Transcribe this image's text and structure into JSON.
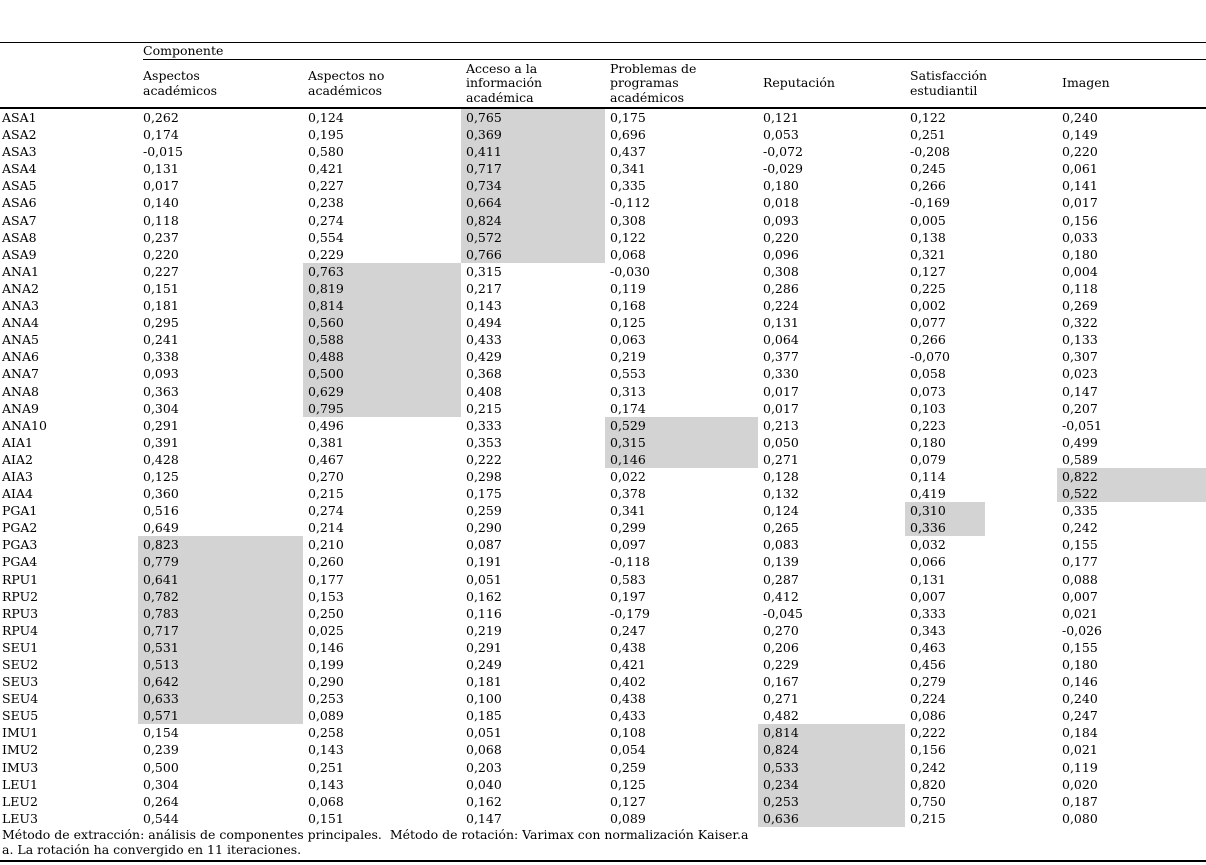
{
  "colors": {
    "highlight": "#d3d3d3",
    "text": "#000000",
    "rule": "#000000",
    "background": "#ffffff"
  },
  "table": {
    "group_header": "Componente",
    "columns": [
      "Aspectos académicos",
      "Aspectos no académicos",
      "Acceso a la información académica",
      "Problemas de programas académicos",
      "Reputación",
      "Satisfacción estudiantil",
      "Imagen"
    ],
    "rows": [
      {
        "label": "ASA1",
        "values": [
          "0,262",
          "0,124",
          "0,765",
          "0,175",
          "0,121",
          "0,122",
          "0,240"
        ],
        "highlight": 2
      },
      {
        "label": "ASA2",
        "values": [
          "0,174",
          "0,195",
          "0,369",
          "0,696",
          "0,053",
          "0,251",
          "0,149"
        ],
        "highlight": 2
      },
      {
        "label": "ASA3",
        "values": [
          "-0,015",
          "0,580",
          "0,411",
          "0,437",
          "-0,072",
          "-0,208",
          "0,220"
        ],
        "highlight": 2
      },
      {
        "label": "ASA4",
        "values": [
          "0,131",
          "0,421",
          "0,717",
          "0,341",
          "-0,029",
          "0,245",
          "0,061"
        ],
        "highlight": 2
      },
      {
        "label": "ASA5",
        "values": [
          "0,017",
          "0,227",
          "0,734",
          "0,335",
          "0,180",
          "0,266",
          "0,141"
        ],
        "highlight": 2
      },
      {
        "label": "ASA6",
        "values": [
          "0,140",
          "0,238",
          "0,664",
          "-0,112",
          "0,018",
          "-0,169",
          "0,017"
        ],
        "highlight": 2
      },
      {
        "label": "ASA7",
        "values": [
          "0,118",
          "0,274",
          "0,824",
          "0,308",
          "0,093",
          "0,005",
          "0,156"
        ],
        "highlight": 2
      },
      {
        "label": "ASA8",
        "values": [
          "0,237",
          "0,554",
          "0,572",
          "0,122",
          "0,220",
          "0,138",
          "0,033"
        ],
        "highlight": 2
      },
      {
        "label": "ASA9",
        "values": [
          "0,220",
          "0,229",
          "0,766",
          "0,068",
          "0,096",
          "0,321",
          "0,180"
        ],
        "highlight": 2
      },
      {
        "label": "ANA1",
        "values": [
          "0,227",
          "0,763",
          "0,315",
          "-0,030",
          "0,308",
          "0,127",
          "0,004"
        ],
        "highlight": 1
      },
      {
        "label": "ANA2",
        "values": [
          "0,151",
          "0,819",
          "0,217",
          "0,119",
          "0,286",
          "0,225",
          "0,118"
        ],
        "highlight": 1
      },
      {
        "label": "ANA3",
        "values": [
          "0,181",
          "0,814",
          "0,143",
          "0,168",
          "0,224",
          "0,002",
          "0,269"
        ],
        "highlight": 1
      },
      {
        "label": "ANA4",
        "values": [
          "0,295",
          "0,560",
          "0,494",
          "0,125",
          "0,131",
          "0,077",
          "0,322"
        ],
        "highlight": 1
      },
      {
        "label": "ANA5",
        "values": [
          "0,241",
          "0,588",
          "0,433",
          "0,063",
          "0,064",
          "0,266",
          "0,133"
        ],
        "highlight": 1
      },
      {
        "label": "ANA6",
        "values": [
          "0,338",
          "0,488",
          "0,429",
          "0,219",
          "0,377",
          "-0,070",
          "0,307"
        ],
        "highlight": 1
      },
      {
        "label": "ANA7",
        "values": [
          "0,093",
          "0,500",
          "0,368",
          "0,553",
          "0,330",
          "0,058",
          "0,023"
        ],
        "highlight": 1
      },
      {
        "label": "ANA8",
        "values": [
          "0,363",
          "0,629",
          "0,408",
          "0,313",
          "0,017",
          "0,073",
          "0,147"
        ],
        "highlight": 1
      },
      {
        "label": "ANA9",
        "values": [
          "0,304",
          "0,795",
          "0,215",
          "0,174",
          "0,017",
          "0,103",
          "0,207"
        ],
        "highlight": 1
      },
      {
        "label": "ANA10",
        "values": [
          "0,291",
          "0,496",
          "0,333",
          "0,529",
          "0,213",
          "0,223",
          "-0,051"
        ],
        "highlight": 3
      },
      {
        "label": "AIA1",
        "values": [
          "0,391",
          "0,381",
          "0,353",
          "0,315",
          "0,050",
          "0,180",
          "0,499"
        ],
        "highlight": 3
      },
      {
        "label": "AIA2",
        "values": [
          "0,428",
          "0,467",
          "0,222",
          "0,146",
          "0,271",
          "0,079",
          "0,589"
        ],
        "highlight": 3
      },
      {
        "label": "AIA3",
        "values": [
          "0,125",
          "0,270",
          "0,298",
          "0,022",
          "0,128",
          "0,114",
          "0,822"
        ],
        "highlight": 6
      },
      {
        "label": "AIA4",
        "values": [
          "0,360",
          "0,215",
          "0,175",
          "0,378",
          "0,132",
          "0,419",
          "0,522"
        ],
        "highlight": 6
      },
      {
        "label": "PGA1",
        "values": [
          "0,516",
          "0,274",
          "0,259",
          "0,341",
          "0,124",
          "0,310",
          "0,335"
        ],
        "highlight": 5
      },
      {
        "label": "PGA2",
        "values": [
          "0,649",
          "0,214",
          "0,290",
          "0,299",
          "0,265",
          "0,336",
          "0,242"
        ],
        "highlight": 5
      },
      {
        "label": "PGA3",
        "values": [
          "0,823",
          "0,210",
          "0,087",
          "0,097",
          "0,083",
          "0,032",
          "0,155"
        ],
        "highlight": 0
      },
      {
        "label": "PGA4",
        "values": [
          "0,779",
          "0,260",
          "0,191",
          "-0,118",
          "0,139",
          "0,066",
          "0,177"
        ],
        "highlight": 0
      },
      {
        "label": "RPU1",
        "values": [
          "0,641",
          "0,177",
          "0,051",
          "0,583",
          "0,287",
          "0,131",
          "0,088"
        ],
        "highlight": 0
      },
      {
        "label": "RPU2",
        "values": [
          "0,782",
          "0,153",
          "0,162",
          "0,197",
          "0,412",
          "0,007",
          "0,007"
        ],
        "highlight": 0
      },
      {
        "label": "RPU3",
        "values": [
          "0,783",
          "0,250",
          "0,116",
          "-0,179",
          "-0,045",
          "0,333",
          "0,021"
        ],
        "highlight": 0
      },
      {
        "label": "RPU4",
        "values": [
          "0,717",
          "0,025",
          "0,219",
          "0,247",
          "0,270",
          "0,343",
          "-0,026"
        ],
        "highlight": 0
      },
      {
        "label": "SEU1",
        "values": [
          "0,531",
          "0,146",
          "0,291",
          "0,438",
          "0,206",
          "0,463",
          "0,155"
        ],
        "highlight": 0
      },
      {
        "label": "SEU2",
        "values": [
          "0,513",
          "0,199",
          "0,249",
          "0,421",
          "0,229",
          "0,456",
          "0,180"
        ],
        "highlight": 0
      },
      {
        "label": "SEU3",
        "values": [
          "0,642",
          "0,290",
          "0,181",
          "0,402",
          "0,167",
          "0,279",
          "0,146"
        ],
        "highlight": 0
      },
      {
        "label": "SEU4",
        "values": [
          "0,633",
          "0,253",
          "0,100",
          "0,438",
          "0,271",
          "0,224",
          "0,240"
        ],
        "highlight": 0
      },
      {
        "label": "SEU5",
        "values": [
          "0,571",
          "0,089",
          "0,185",
          "0,433",
          "0,482",
          "0,086",
          "0,247"
        ],
        "highlight": 0
      },
      {
        "label": "IMU1",
        "values": [
          "0,154",
          "0,258",
          "0,051",
          "0,108",
          "0,814",
          "0,222",
          "0,184"
        ],
        "highlight": 4
      },
      {
        "label": "IMU2",
        "values": [
          "0,239",
          "0,143",
          "0,068",
          "0,054",
          "0,824",
          "0,156",
          "0,021"
        ],
        "highlight": 4
      },
      {
        "label": "IMU3",
        "values": [
          "0,500",
          "0,251",
          "0,203",
          "0,259",
          "0,533",
          "0,242",
          "0,119"
        ],
        "highlight": 4
      },
      {
        "label": "LEU1",
        "values": [
          "0,304",
          "0,143",
          "0,040",
          "0,125",
          "0,234",
          "0,820",
          "0,020"
        ],
        "highlight": 4
      },
      {
        "label": "LEU2",
        "values": [
          "0,264",
          "0,068",
          "0,162",
          "0,127",
          "0,253",
          "0,750",
          "0,187"
        ],
        "highlight": 4
      },
      {
        "label": "LEU3",
        "values": [
          "0,544",
          "0,151",
          "0,147",
          "0,089",
          "0,636",
          "0,215",
          "0,080"
        ],
        "highlight": 4
      }
    ],
    "footnotes": [
      "Método de extracción: análisis de componentes principales.  Método de rotación: Varimax con normalización Kaiser.a",
      "a. La rotación ha convergido en 11 iteraciones."
    ]
  }
}
